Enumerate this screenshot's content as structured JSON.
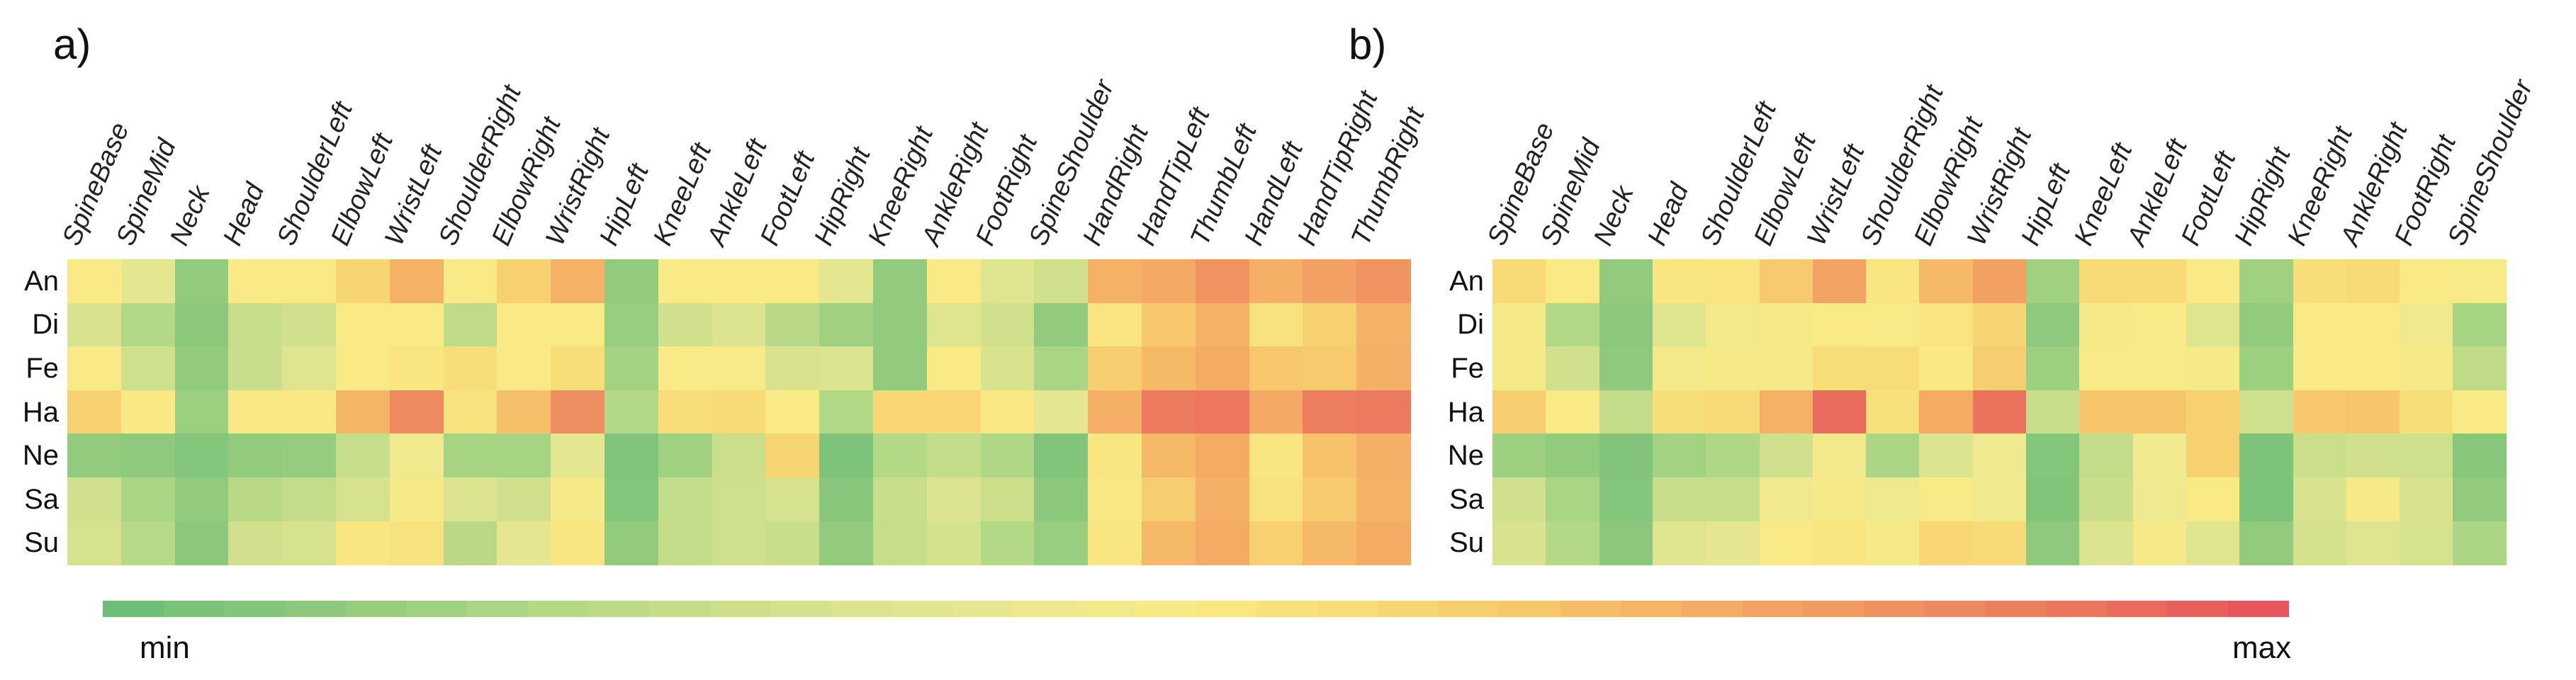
{
  "figure": {
    "panel_a_letter": "a)",
    "panel_b_letter": "b)",
    "colorbar": {
      "min_label": "min",
      "max_label": "max"
    },
    "palette_stops": [
      [
        0.0,
        "#6fbe76"
      ],
      [
        0.08,
        "#8bc87c"
      ],
      [
        0.17,
        "#a9d584"
      ],
      [
        0.25,
        "#c3dc89"
      ],
      [
        0.33,
        "#d9e38e"
      ],
      [
        0.42,
        "#ece892"
      ],
      [
        0.5,
        "#f9ea85"
      ],
      [
        0.57,
        "#f8dc77"
      ],
      [
        0.65,
        "#f7c96c"
      ],
      [
        0.72,
        "#f5b266"
      ],
      [
        0.8,
        "#f19a62"
      ],
      [
        0.88,
        "#ed815f"
      ],
      [
        1.0,
        "#e7565c"
      ]
    ]
  },
  "chart_data": [
    {
      "type": "heatmap",
      "title": "a)",
      "legend_position": "bottom-shared-colorbar",
      "grid": false,
      "color_scale": "green(min) -> yellow -> red(max)",
      "rows": [
        "An",
        "Di",
        "Fe",
        "Ha",
        "Ne",
        "Sa",
        "Su"
      ],
      "columns": [
        "SpineBase",
        "SpineMid",
        "Neck",
        "Head",
        "ShoulderLeft",
        "ElbowLeft",
        "WristLeft",
        "ShoulderRight",
        "ElbowRight",
        "WristRight",
        "HipLeft",
        "KneeLeft",
        "AnkleLeft",
        "FootLeft",
        "HipRight",
        "KneeRight",
        "AnkleRight",
        "FootRight",
        "SpineShoulder",
        "HandRight",
        "HandTipLeft",
        "ThumbLeft",
        "HandLeft",
        "HandTipRight",
        "ThumbRight"
      ],
      "values": [
        [
          0.5,
          0.38,
          0.1,
          0.5,
          0.5,
          0.6,
          0.72,
          0.5,
          0.62,
          0.72,
          0.1,
          0.5,
          0.5,
          0.5,
          0.38,
          0.1,
          0.5,
          0.36,
          0.3,
          0.72,
          0.75,
          0.82,
          0.73,
          0.78,
          0.82
        ],
        [
          0.33,
          0.2,
          0.08,
          0.27,
          0.3,
          0.5,
          0.5,
          0.24,
          0.5,
          0.5,
          0.12,
          0.3,
          0.35,
          0.22,
          0.14,
          0.1,
          0.36,
          0.3,
          0.1,
          0.53,
          0.65,
          0.72,
          0.54,
          0.62,
          0.72
        ],
        [
          0.5,
          0.29,
          0.1,
          0.27,
          0.36,
          0.5,
          0.52,
          0.56,
          0.5,
          0.56,
          0.15,
          0.49,
          0.49,
          0.33,
          0.35,
          0.1,
          0.5,
          0.33,
          0.17,
          0.63,
          0.7,
          0.74,
          0.65,
          0.64,
          0.73
        ],
        [
          0.62,
          0.51,
          0.13,
          0.51,
          0.51,
          0.71,
          0.85,
          0.54,
          0.68,
          0.84,
          0.2,
          0.57,
          0.58,
          0.5,
          0.2,
          0.59,
          0.59,
          0.51,
          0.38,
          0.73,
          0.9,
          0.91,
          0.75,
          0.89,
          0.9
        ],
        [
          0.1,
          0.09,
          0.06,
          0.1,
          0.11,
          0.26,
          0.45,
          0.16,
          0.16,
          0.38,
          0.05,
          0.14,
          0.28,
          0.6,
          0.04,
          0.2,
          0.25,
          0.19,
          0.05,
          0.52,
          0.7,
          0.74,
          0.52,
          0.67,
          0.73
        ],
        [
          0.3,
          0.17,
          0.1,
          0.22,
          0.25,
          0.32,
          0.48,
          0.35,
          0.3,
          0.48,
          0.06,
          0.25,
          0.29,
          0.32,
          0.07,
          0.27,
          0.35,
          0.28,
          0.08,
          0.51,
          0.63,
          0.73,
          0.54,
          0.64,
          0.72
        ],
        [
          0.32,
          0.21,
          0.08,
          0.3,
          0.32,
          0.52,
          0.54,
          0.22,
          0.39,
          0.52,
          0.1,
          0.25,
          0.29,
          0.27,
          0.1,
          0.26,
          0.31,
          0.2,
          0.12,
          0.52,
          0.7,
          0.74,
          0.62,
          0.7,
          0.74
        ]
      ],
      "value_range_labels": {
        "min": "min",
        "max": "max"
      }
    },
    {
      "type": "heatmap",
      "title": "b)",
      "legend_position": "bottom-shared-colorbar",
      "grid": false,
      "color_scale": "green(min) -> yellow -> red(max)",
      "rows": [
        "An",
        "Di",
        "Fe",
        "Ha",
        "Ne",
        "Sa",
        "Su"
      ],
      "columns": [
        "SpineBase",
        "SpineMid",
        "Neck",
        "Head",
        "ShoulderLeft",
        "ElbowLeft",
        "WristLeft",
        "ShoulderRight",
        "ElbowRight",
        "WristRight",
        "HipLeft",
        "KneeLeft",
        "AnkleLeft",
        "FootLeft",
        "HipRight",
        "KneeRight",
        "AnkleRight",
        "FootRight",
        "SpineShoulder"
      ],
      "values": [
        [
          0.58,
          0.5,
          0.1,
          0.52,
          0.53,
          0.64,
          0.77,
          0.52,
          0.7,
          0.78,
          0.14,
          0.58,
          0.58,
          0.5,
          0.14,
          0.56,
          0.58,
          0.5,
          0.49
        ],
        [
          0.48,
          0.2,
          0.08,
          0.36,
          0.46,
          0.48,
          0.5,
          0.49,
          0.53,
          0.6,
          0.09,
          0.48,
          0.49,
          0.36,
          0.1,
          0.5,
          0.5,
          0.45,
          0.16
        ],
        [
          0.48,
          0.3,
          0.09,
          0.47,
          0.48,
          0.48,
          0.56,
          0.57,
          0.51,
          0.63,
          0.13,
          0.49,
          0.49,
          0.48,
          0.13,
          0.5,
          0.5,
          0.48,
          0.24
        ],
        [
          0.63,
          0.5,
          0.25,
          0.56,
          0.58,
          0.72,
          0.94,
          0.55,
          0.74,
          0.92,
          0.27,
          0.66,
          0.66,
          0.62,
          0.29,
          0.65,
          0.66,
          0.56,
          0.5
        ],
        [
          0.13,
          0.1,
          0.05,
          0.15,
          0.19,
          0.3,
          0.46,
          0.18,
          0.34,
          0.44,
          0.06,
          0.25,
          0.44,
          0.62,
          0.04,
          0.28,
          0.3,
          0.29,
          0.07
        ],
        [
          0.3,
          0.17,
          0.06,
          0.27,
          0.26,
          0.45,
          0.48,
          0.44,
          0.49,
          0.45,
          0.05,
          0.27,
          0.44,
          0.5,
          0.04,
          0.33,
          0.48,
          0.33,
          0.1
        ],
        [
          0.33,
          0.2,
          0.08,
          0.36,
          0.39,
          0.5,
          0.52,
          0.48,
          0.59,
          0.58,
          0.09,
          0.35,
          0.48,
          0.37,
          0.1,
          0.31,
          0.36,
          0.32,
          0.18
        ]
      ],
      "value_range_labels": {
        "min": "min",
        "max": "max"
      }
    }
  ]
}
